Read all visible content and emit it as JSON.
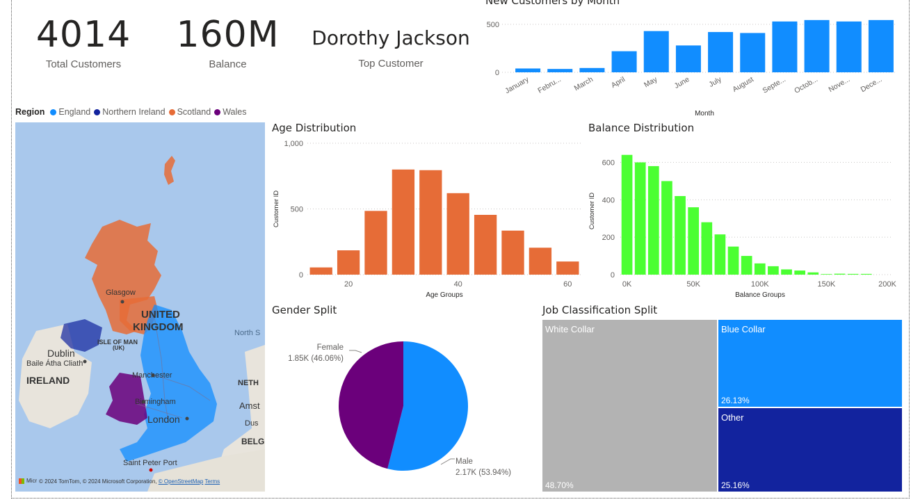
{
  "kpis": {
    "total_customers_value": "4014",
    "total_customers_label": "Total Customers",
    "balance_value": "160M",
    "balance_label": "Balance",
    "top_customer_value": "Dorothy Jackson",
    "top_customer_label": "Top Customer"
  },
  "map": {
    "legend_title": "Region",
    "legend": [
      {
        "label": "England",
        "color": "#118dff"
      },
      {
        "label": "Northern Ireland",
        "color": "#12239e"
      },
      {
        "label": "Scotland",
        "color": "#e66c37"
      },
      {
        "label": "Wales",
        "color": "#6b007b"
      }
    ],
    "labels": {
      "uk": "UNITED",
      "uk2": "KINGDOM",
      "glasgow": "Glasgow",
      "isle_of_man": "ISLE OF MAN",
      "isle_of_man_uk": "(UK)",
      "dublin": "Dublin",
      "baile": "Baile Átha Cliath",
      "ireland": "IRELAND",
      "manchester": "Manchester",
      "birmingham": "Birmingham",
      "london": "London",
      "north_sea": "North S",
      "neth": "NETH",
      "amst": "Amst",
      "dus": "Dus",
      "belg": "BELG",
      "saint_peter_port": "Saint Peter Port"
    },
    "attribution": "© 2024 TomTom, © 2024 Microsoft Corporation,",
    "attribution_osm": "© OpenStreetMap",
    "attribution_terms": "Terms",
    "logo_text": "Micr"
  },
  "titles": {
    "new_customers": "New Customers by Month",
    "age": "Age Distribution",
    "balance": "Balance Distribution",
    "gender": "Gender Split",
    "job": "Job Classification Split"
  },
  "chart_data": [
    {
      "type": "bar",
      "id": "new_customers",
      "title": "New Customers by Month",
      "xlabel": "Month",
      "ylabel": "",
      "categories": [
        "January",
        "Febru...",
        "March",
        "April",
        "May",
        "June",
        "July",
        "August",
        "Septe...",
        "Octob...",
        "Nove...",
        "Dece..."
      ],
      "values": [
        40,
        35,
        45,
        220,
        430,
        280,
        420,
        410,
        530,
        545,
        530,
        545
      ],
      "ylim": [
        0,
        580
      ],
      "yticks": [
        "0",
        "500"
      ],
      "color": "#118dff",
      "grid": true
    },
    {
      "type": "bar",
      "id": "age",
      "title": "Age Distribution",
      "xlabel": "Age Groups",
      "ylabel": "Customer ID",
      "x": [
        15,
        20,
        25,
        30,
        35,
        40,
        45,
        50,
        55,
        60
      ],
      "values": [
        55,
        185,
        485,
        800,
        795,
        620,
        455,
        335,
        205,
        100
      ],
      "xlim": [
        12.5,
        62.5
      ],
      "ylim": [
        0,
        1000
      ],
      "xticks": [
        "20",
        "40",
        "60"
      ],
      "yticks": [
        "0",
        "500",
        "1,000"
      ],
      "color": "#e66c37",
      "grid": true
    },
    {
      "type": "bar",
      "id": "balance",
      "title": "Balance Distribution",
      "xlabel": "Balance Groups",
      "ylabel": "Customer ID",
      "x": [
        0,
        10000,
        20000,
        30000,
        40000,
        50000,
        60000,
        70000,
        80000,
        90000,
        100000,
        110000,
        120000,
        130000,
        140000,
        150000,
        160000,
        170000,
        180000
      ],
      "values": [
        640,
        600,
        580,
        500,
        420,
        360,
        280,
        215,
        150,
        100,
        60,
        45,
        28,
        22,
        12,
        3,
        5,
        4,
        4
      ],
      "xlim": [
        -5000,
        200000
      ],
      "ylim": [
        0,
        680
      ],
      "xticks": [
        "0K",
        "50K",
        "100K",
        "150K",
        "200K"
      ],
      "yticks": [
        "0",
        "200",
        "400",
        "600"
      ],
      "color": "#4bff32",
      "grid": true
    },
    {
      "type": "pie",
      "id": "gender",
      "title": "Gender Split",
      "slices": [
        {
          "label": "Male",
          "value": 2.17,
          "display": "2.17K (53.94%)",
          "percent": 53.94,
          "color": "#118dff"
        },
        {
          "label": "Female",
          "value": 1.85,
          "display": "1.85K (46.06%)",
          "percent": 46.06,
          "color": "#6b007b"
        }
      ]
    },
    {
      "type": "table",
      "id": "job",
      "title": "Job Classification Split",
      "items": [
        {
          "label": "White Collar",
          "percent": 48.7,
          "display": "48.70%",
          "color": "#b3b3b3"
        },
        {
          "label": "Blue Collar",
          "percent": 26.13,
          "display": "26.13%",
          "color": "#118dff"
        },
        {
          "label": "Other",
          "percent": 25.16,
          "display": "25.16%",
          "color": "#12239e"
        }
      ]
    }
  ]
}
